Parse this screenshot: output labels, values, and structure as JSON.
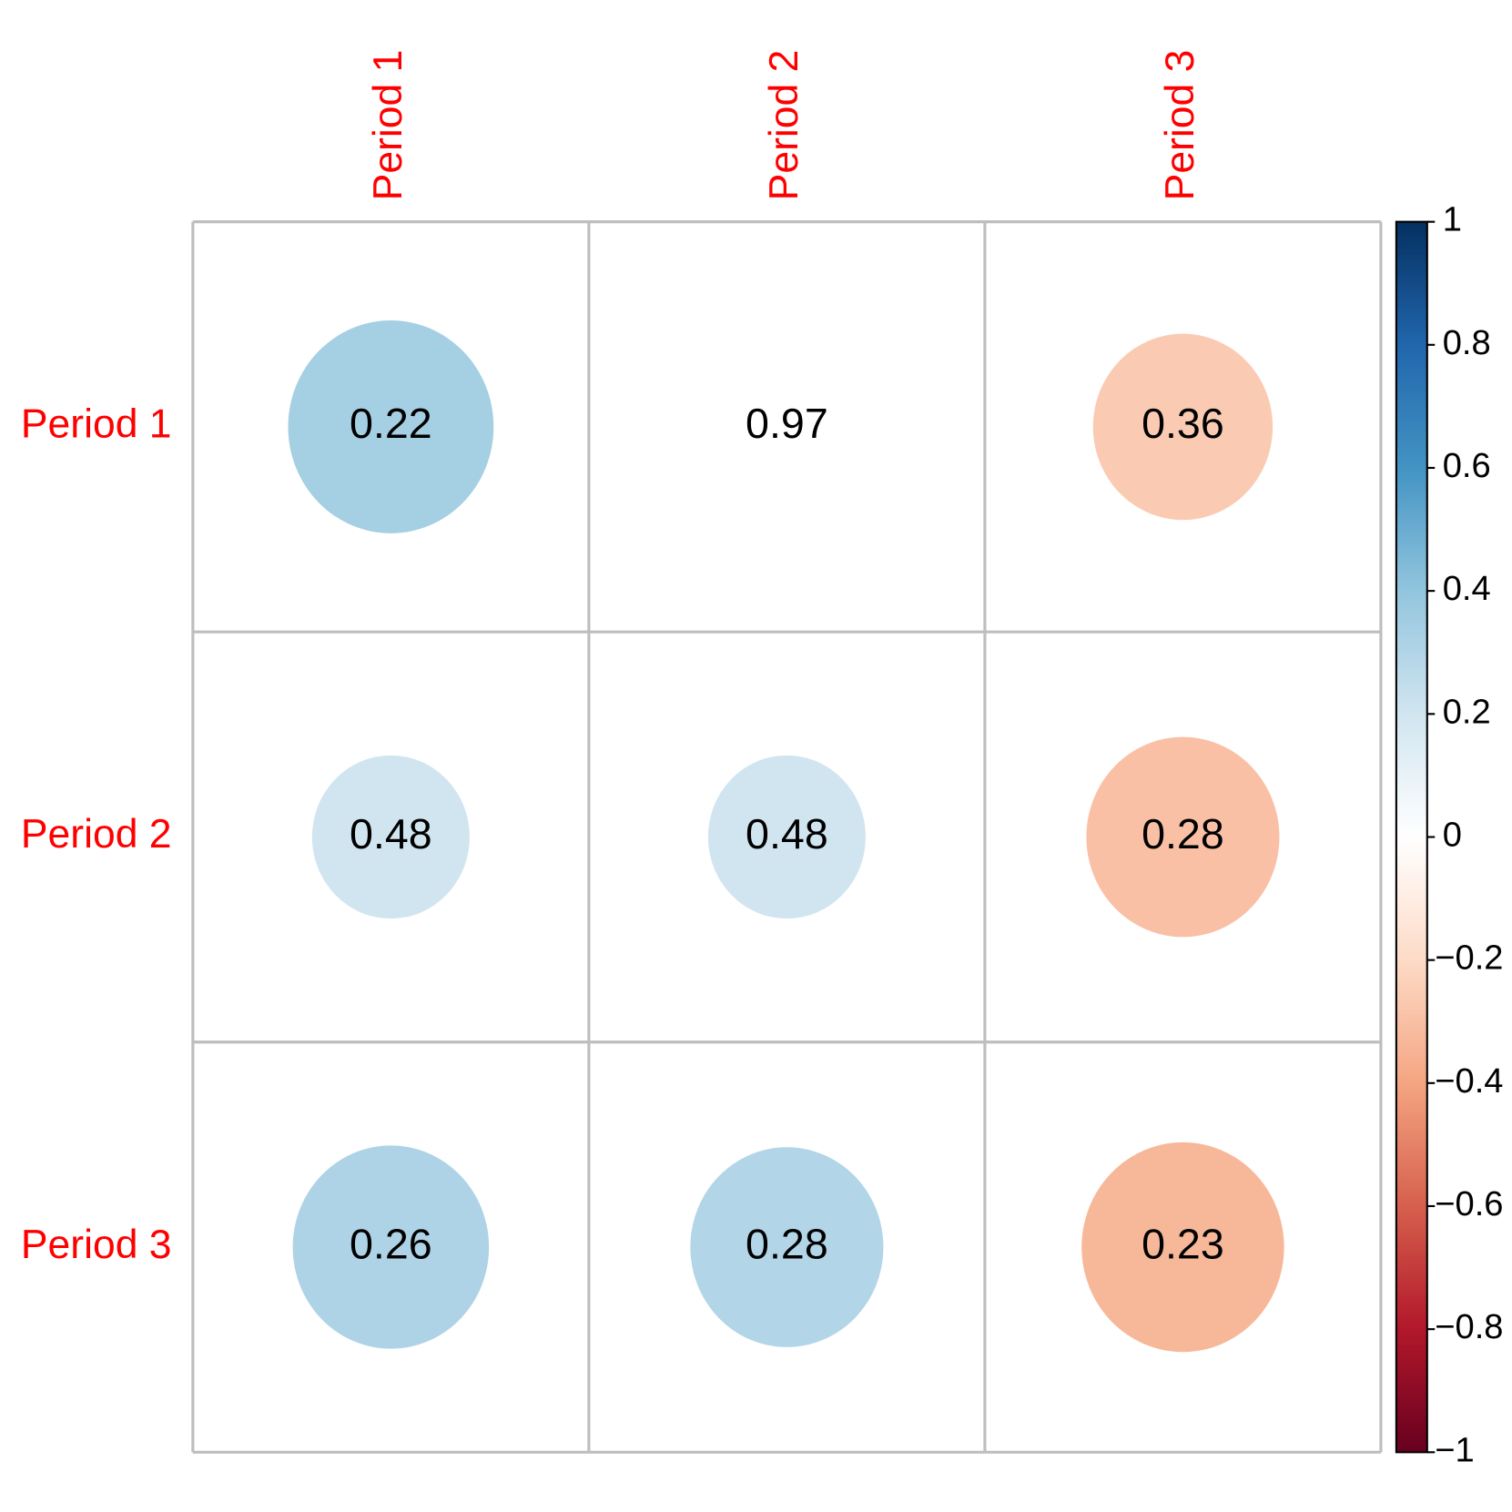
{
  "chart_data": {
    "type": "corrplot",
    "x_labels": [
      "Period 1",
      "Period 2",
      "Period 3"
    ],
    "y_labels": [
      "Period 1",
      "Period 2",
      "Period 3"
    ],
    "values": [
      [
        0.34,
        0,
        -0.26
      ],
      [
        0.2,
        0.2,
        -0.3
      ],
      [
        0.31,
        0.3,
        -0.33
      ]
    ],
    "cell_text": [
      [
        0.22,
        0.97,
        0.36
      ],
      [
        0.48,
        0.48,
        0.28
      ],
      [
        0.26,
        0.28,
        0.23
      ]
    ],
    "label_color": "#ff0000",
    "colors": [
      "#67001F",
      "#B2182B",
      "#D6604D",
      "#F4A582",
      "#FDDBC7",
      "#FFFFFF",
      "#D1E5F0",
      "#92C5DE",
      "#4393C3",
      "#2166AC",
      "#053061"
    ],
    "clim": [
      -1,
      1
    ],
    "colorbar_ticks": [
      {
        "value": -1,
        "label": "−1"
      },
      {
        "value": -0.8,
        "label": "−0.8"
      },
      {
        "value": -0.6,
        "label": "−0.6"
      },
      {
        "value": -0.4,
        "label": "−0.4"
      },
      {
        "value": -0.2,
        "label": "−0.2"
      },
      0,
      0.2,
      0.4,
      0.6,
      0.8,
      1
    ]
  }
}
